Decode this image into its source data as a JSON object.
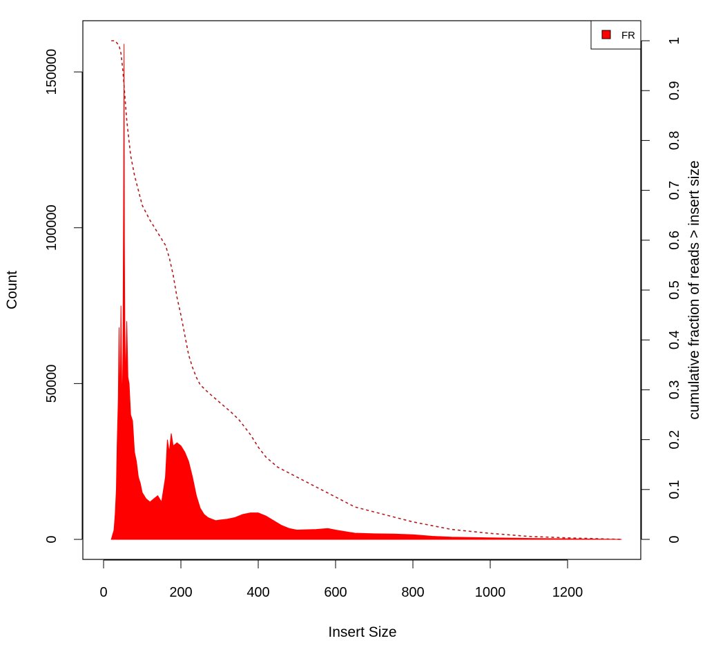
{
  "chart_data": {
    "type": "area",
    "xlabel": "Insert Size",
    "ylabel": "Count",
    "y2label": "cumulative fraction of reads > insert size",
    "xlim": [
      0,
      1340
    ],
    "ylim": [
      0,
      160000
    ],
    "y2lim": [
      0,
      1
    ],
    "x_ticks": [
      0,
      200,
      400,
      600,
      800,
      1000,
      1200
    ],
    "y_ticks": [
      0,
      50000,
      100000,
      150000
    ],
    "y2_ticks": [
      0,
      0.1,
      0.2,
      0.3,
      0.4,
      0.5,
      0.6,
      0.7,
      0.8,
      0.9,
      1
    ],
    "legend": {
      "position": "top-right",
      "entries": [
        {
          "label": "FR",
          "color": "#ff0000"
        }
      ]
    },
    "grid": false,
    "series": [
      {
        "name": "FR",
        "kind": "histogram",
        "color": "#ff0000",
        "x": [
          20,
          27,
          30,
          33,
          35,
          38,
          40,
          43,
          45,
          48,
          50,
          52,
          53,
          54,
          55,
          57,
          60,
          63,
          66,
          70,
          75,
          80,
          85,
          90,
          95,
          100,
          110,
          120,
          130,
          140,
          150,
          160,
          165,
          170,
          175,
          180,
          190,
          200,
          210,
          220,
          230,
          240,
          250,
          260,
          270,
          280,
          290,
          300,
          320,
          340,
          360,
          380,
          400,
          420,
          440,
          460,
          480,
          500,
          550,
          580,
          600,
          650,
          700,
          750,
          800,
          850,
          900,
          1000,
          1100,
          1200,
          1340
        ],
        "values": [
          0,
          3000,
          8000,
          16000,
          30000,
          45000,
          68000,
          42000,
          75000,
          40000,
          60000,
          115000,
          159000,
          95000,
          68000,
          50000,
          70000,
          52000,
          50000,
          40000,
          38000,
          28000,
          25000,
          20000,
          18000,
          15000,
          13000,
          12000,
          13000,
          14000,
          12000,
          20000,
          32000,
          28000,
          34000,
          30000,
          31000,
          30000,
          28000,
          25000,
          20000,
          14000,
          10000,
          8000,
          7000,
          6500,
          6000,
          6200,
          6500,
          7000,
          8000,
          8500,
          8500,
          7500,
          6000,
          4500,
          3500,
          3000,
          3200,
          3500,
          3000,
          2000,
          1800,
          1700,
          1500,
          1000,
          700,
          500,
          300,
          200,
          0
        ]
      },
      {
        "name": "cumulative",
        "kind": "dashed-line",
        "axis": "right",
        "color": "#b21a1a",
        "x": [
          20,
          30,
          40,
          45,
          50,
          55,
          60,
          70,
          80,
          90,
          100,
          120,
          140,
          160,
          170,
          180,
          190,
          200,
          210,
          220,
          230,
          240,
          250,
          270,
          300,
          330,
          350,
          380,
          400,
          420,
          450,
          500,
          550,
          600,
          650,
          700,
          800,
          900,
          1000,
          1100,
          1200,
          1340
        ],
        "values": [
          1.0,
          1.0,
          0.99,
          0.975,
          0.94,
          0.89,
          0.84,
          0.77,
          0.73,
          0.7,
          0.67,
          0.64,
          0.615,
          0.59,
          0.565,
          0.53,
          0.485,
          0.45,
          0.41,
          0.37,
          0.345,
          0.325,
          0.31,
          0.295,
          0.275,
          0.255,
          0.24,
          0.21,
          0.185,
          0.165,
          0.145,
          0.125,
          0.105,
          0.085,
          0.065,
          0.055,
          0.035,
          0.02,
          0.012,
          0.006,
          0.003,
          0.0
        ]
      }
    ]
  }
}
